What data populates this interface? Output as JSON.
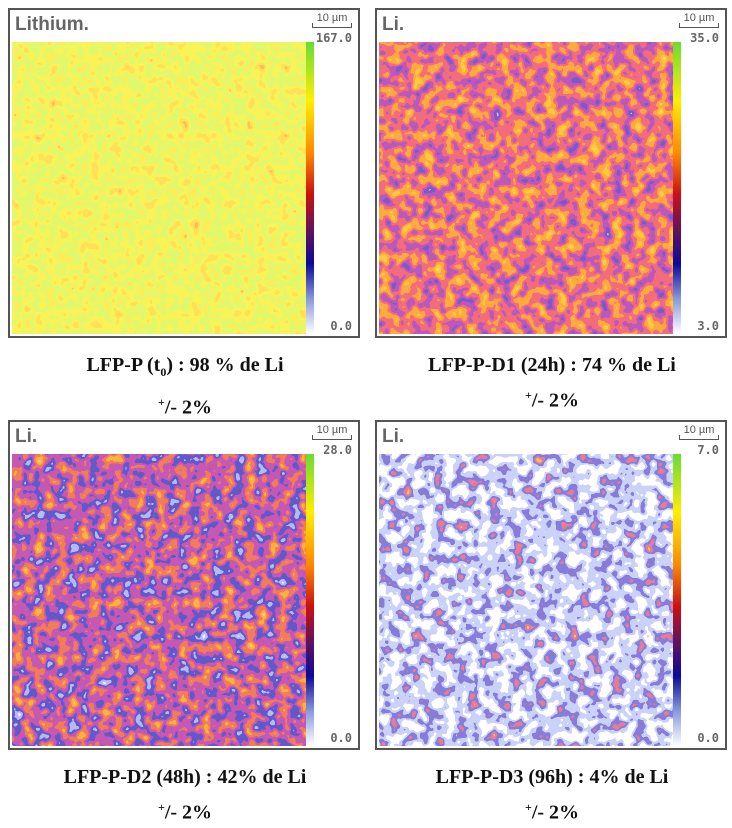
{
  "panels": [
    {
      "label": "Lithium.",
      "scale": "10 µm",
      "max": "167.0",
      "min": "0.0",
      "caption_main": "LFP-P (t",
      "caption_sub": "0",
      "caption_end": ") : 98 % de Li",
      "error_sup": "+",
      "error": "/- 2%"
    },
    {
      "label": "Li.",
      "scale": "10 µm",
      "max": "35.0",
      "min": "3.0",
      "caption": "LFP-P-D1 (24h) : 74 % de Li",
      "error_sup": "+",
      "error": "/- 2%"
    },
    {
      "label": "Li.",
      "scale": "10 µm",
      "max": "28.0",
      "min": "0.0",
      "caption": "LFP-P-D2 (48h) : 42% de Li",
      "error_sup": "+",
      "error": "/- 2%"
    },
    {
      "label": "Li.",
      "scale": "10 µm",
      "max": "7.0",
      "min": "0.0",
      "caption": "LFP-P-D3 (96h) : 4% de Li",
      "error_sup": "+",
      "error": "/- 2%"
    }
  ]
}
